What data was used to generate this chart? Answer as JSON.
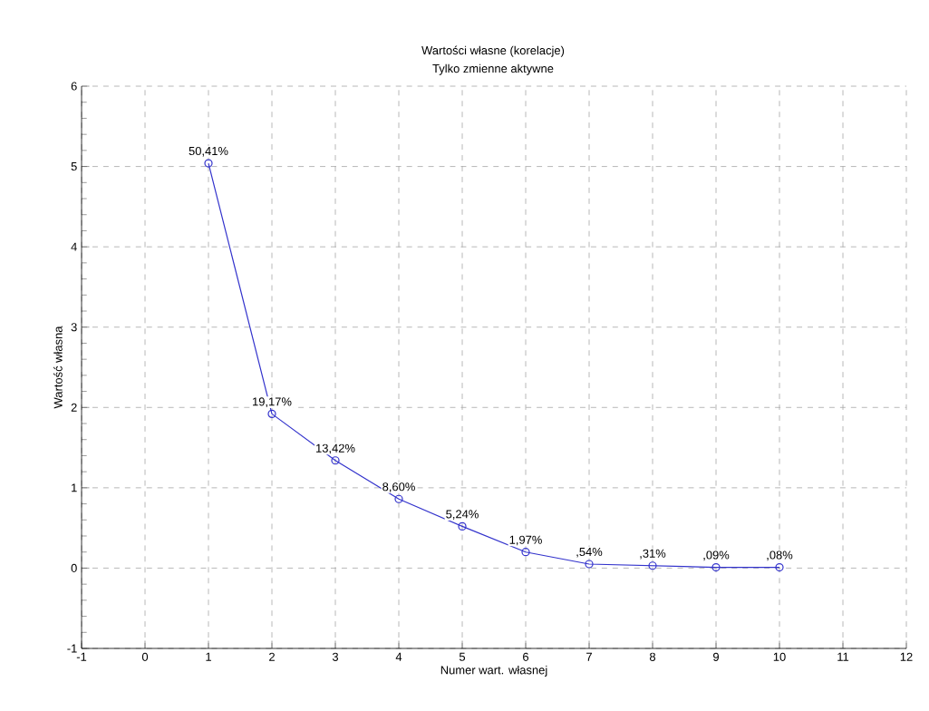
{
  "chart_data": {
    "type": "line",
    "title": "Wartości własne (korelacje)",
    "subtitle": "Tylko zmienne aktywne",
    "xlabel": "Numer wart. własnej",
    "ylabel": "Wartość własna",
    "x": [
      1,
      2,
      3,
      4,
      5,
      6,
      7,
      8,
      9,
      10
    ],
    "series": [
      {
        "color": "#3333cc",
        "values": [
          5.04,
          1.92,
          1.34,
          0.86,
          0.52,
          0.2,
          0.05,
          0.03,
          0.01,
          0.01
        ]
      }
    ],
    "annotations": [
      {
        "text": "50,41%",
        "x": 1,
        "y": 5.04
      },
      {
        "text": "19,17%",
        "x": 2,
        "y": 1.92
      },
      {
        "text": "13,42%",
        "x": 3,
        "y": 1.34
      },
      {
        "text": "8,60%",
        "x": 4,
        "y": 0.86
      },
      {
        "text": "5,24%",
        "x": 5,
        "y": 0.52
      },
      {
        "text": "1,97%",
        "x": 6,
        "y": 0.2
      },
      {
        "text": ",54%",
        "x": 7,
        "y": 0.05
      },
      {
        "text": ",31%",
        "x": 8,
        "y": 0.03
      },
      {
        "text": ",09%",
        "x": 9,
        "y": 0.01
      },
      {
        "text": ",08%",
        "x": 10,
        "y": 0.01
      }
    ],
    "xlim": [
      -1,
      12
    ],
    "xticks": [
      -1,
      0,
      1,
      2,
      3,
      4,
      5,
      6,
      7,
      8,
      9,
      10,
      11,
      12
    ],
    "ylim": [
      -1,
      6
    ],
    "yticks": [
      -1,
      0,
      1,
      2,
      3,
      4,
      5,
      6
    ],
    "grid": true,
    "marker": "circle"
  }
}
